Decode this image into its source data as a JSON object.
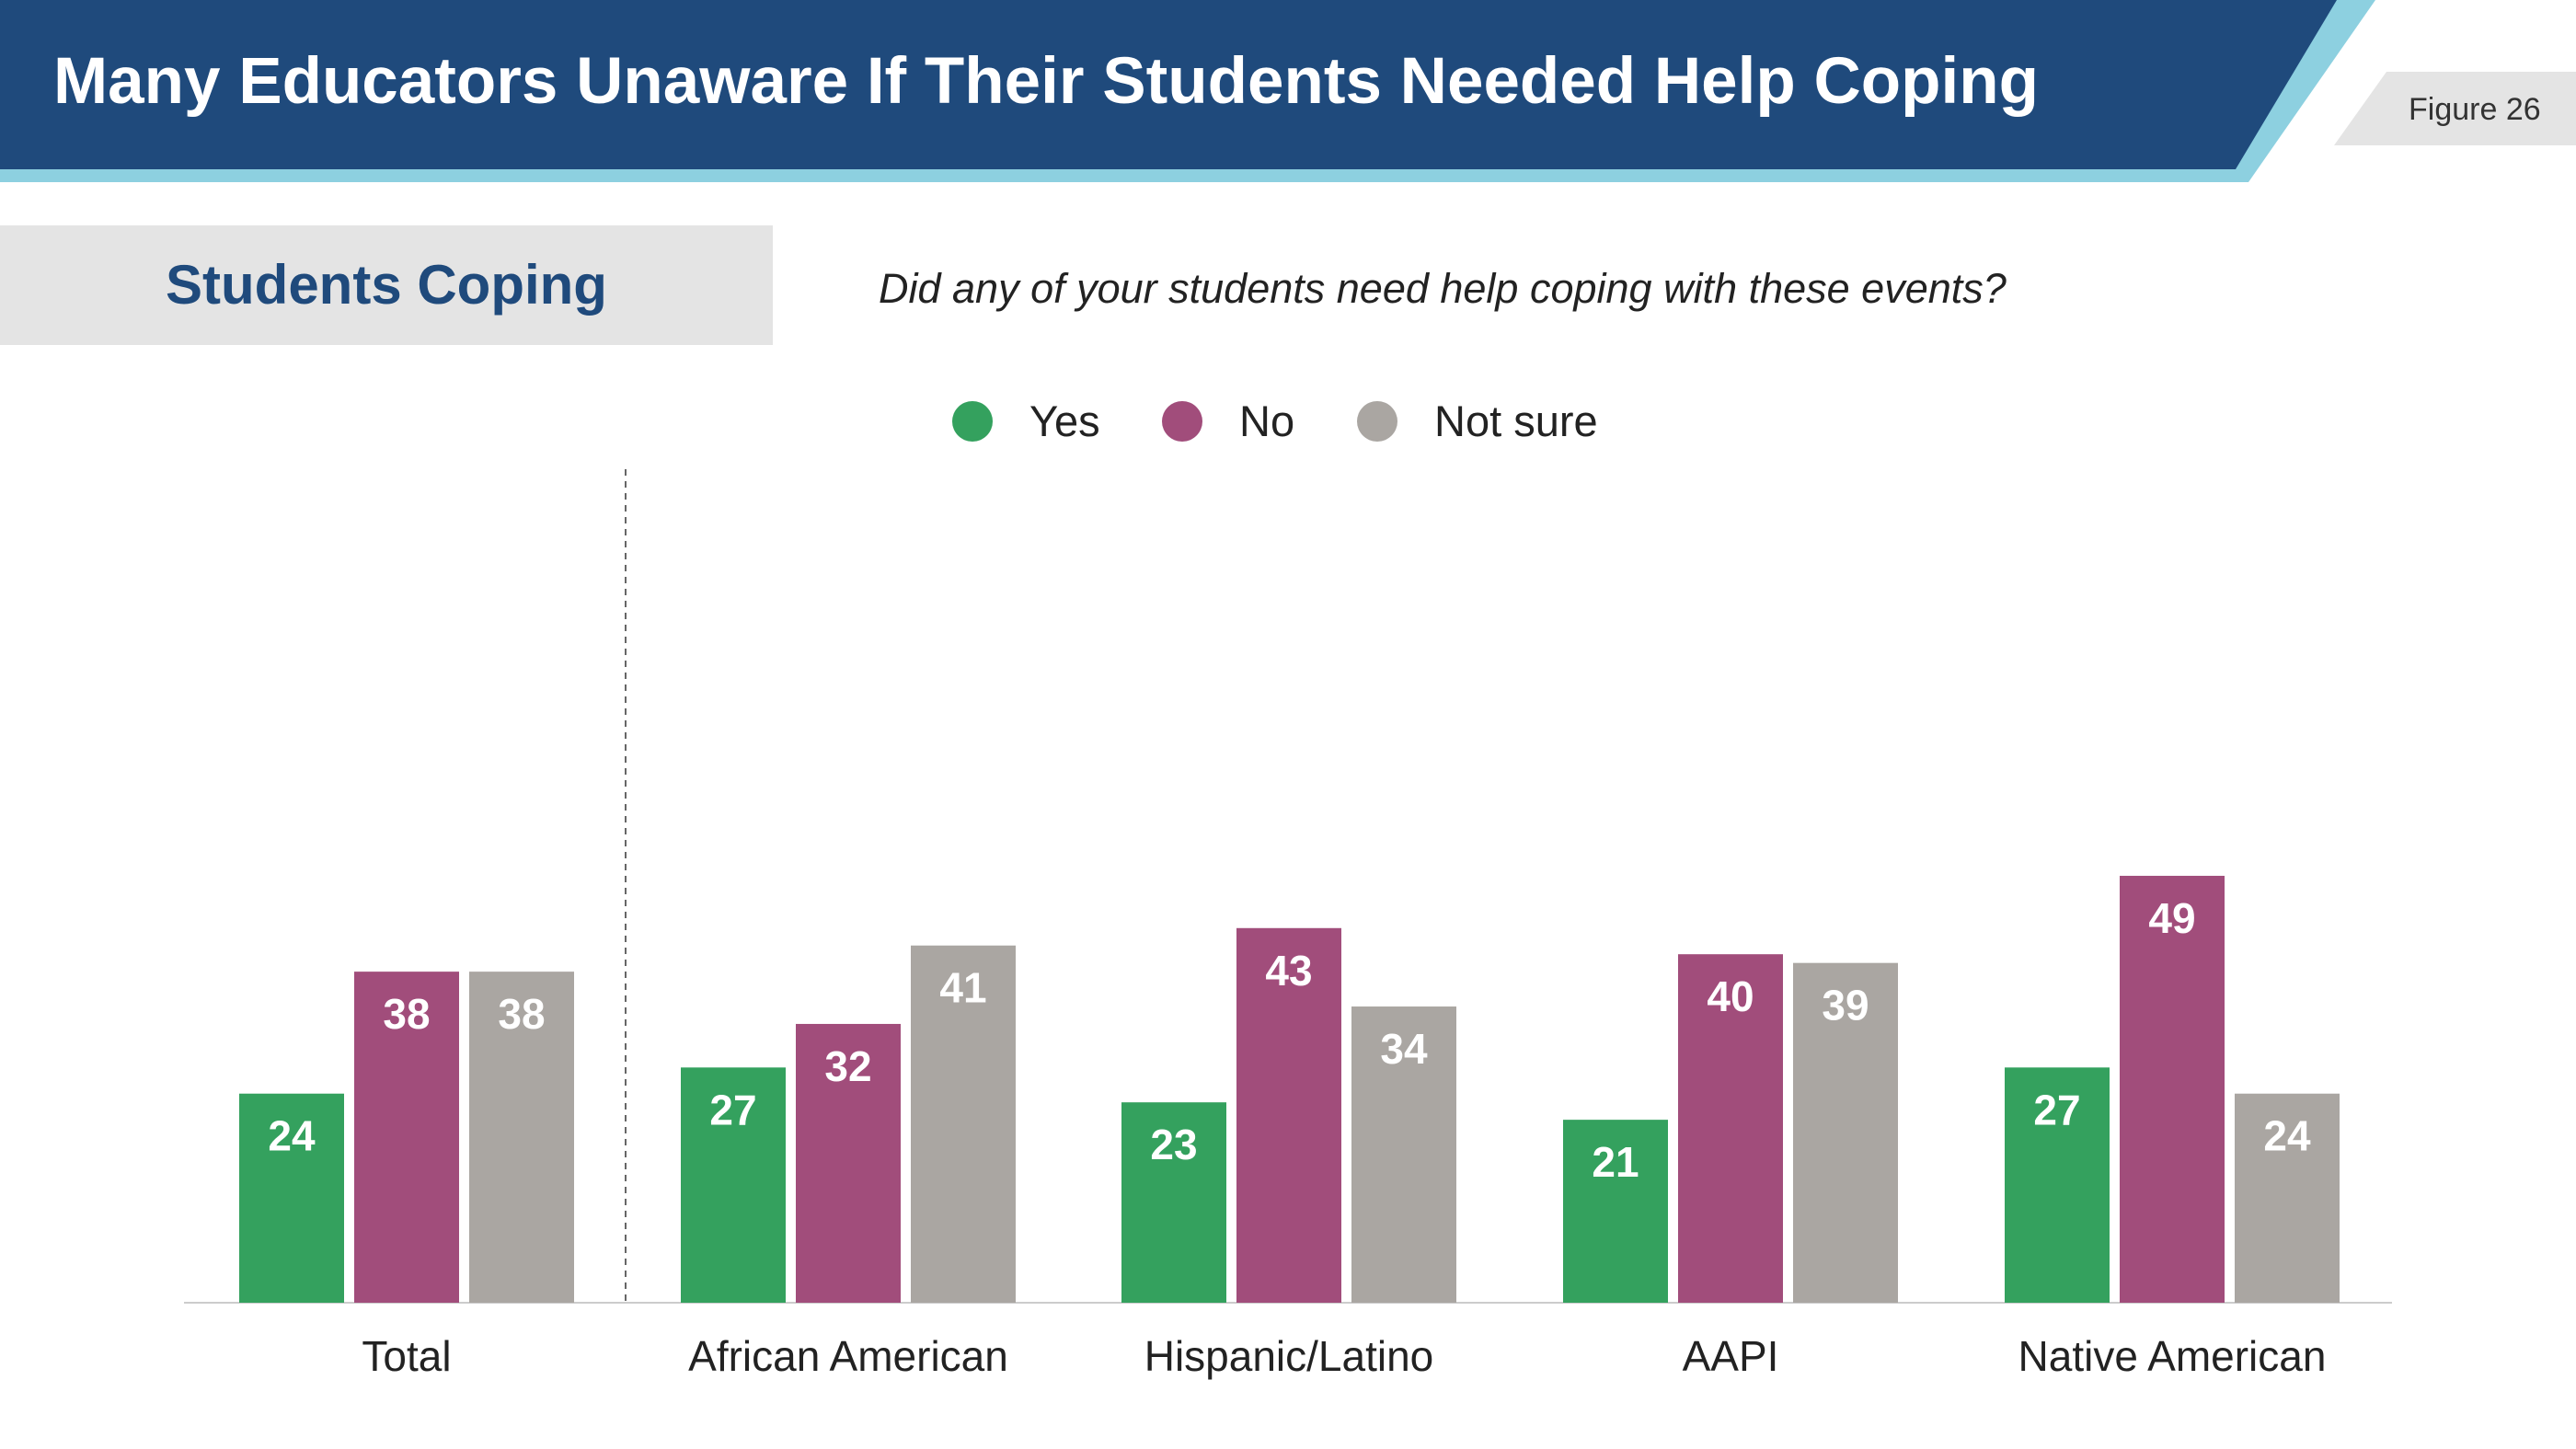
{
  "header": {
    "title": "Many Educators Unaware If Their Students Needed Help Coping",
    "figure_label": "Figure 26"
  },
  "section": {
    "title": "Students Coping",
    "question": "Did any of your students need help coping with  these events?"
  },
  "colors": {
    "banner_dark": "#1f4a7c",
    "banner_accent": "#8dd0e0",
    "yes": "#34a15e",
    "no": "#a14d7b",
    "not_sure": "#aaa6a2"
  },
  "chart_data": {
    "type": "bar",
    "categories": [
      "Total",
      "African American",
      "Hispanic/Latino",
      "AAPI",
      "Native American"
    ],
    "series": [
      {
        "name": "Yes",
        "color": "#34a15e",
        "values": [
          24,
          27,
          23,
          21,
          27
        ]
      },
      {
        "name": "No",
        "color": "#a14d7b",
        "values": [
          38,
          32,
          43,
          40,
          49
        ]
      },
      {
        "name": "Not sure",
        "color": "#aaa6a2",
        "values": [
          38,
          41,
          34,
          39,
          24
        ]
      }
    ],
    "ylim": [
      0,
      100
    ],
    "grid": false,
    "legend_position": "top",
    "data_labels": true,
    "separator_after_category": "Total"
  }
}
